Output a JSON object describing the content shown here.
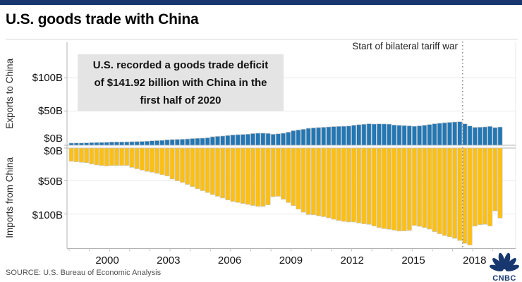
{
  "header": {
    "title": "U.S. goods trade with China"
  },
  "chart": {
    "tariff_label": "Start of bilateral tariff war",
    "annotation_lines": [
      "U.S. recorded a goods trade deficit",
      "of $141.92 billion with China in the",
      "first half of 2020"
    ],
    "y_axis_top": {
      "title": "Exports to China",
      "ticks": [
        "$100B",
        "$50B",
        "$0B"
      ]
    },
    "y_axis_bottom": {
      "title": "Imports from China",
      "ticks": [
        "$0B",
        "$50B",
        "$100B"
      ]
    },
    "x_ticks": [
      "2000",
      "2003",
      "2006",
      "2009",
      "2012",
      "2015",
      "2018"
    ]
  },
  "footer": {
    "source": "SOURCE: U.S. Bureau of Economic Analysis",
    "logo_text": "CNBC"
  },
  "colors": {
    "exports_bar": "#2277b4",
    "imports_bar": "#fdbf12",
    "bar_edge": "#c9c9c9",
    "navy": "#17376e",
    "annotation_bg": "#e4e4e4",
    "grid": "#e8e8e8",
    "axis": "#b3b3b3",
    "dotted_line": "#8c8c8c",
    "tick_text": "#111111"
  },
  "chart_data": {
    "type": "bar",
    "frequency": "quarterly",
    "x_start": "1999Q1",
    "x_end": "2020Q2",
    "units": "USD billions per quarter",
    "title": "U.S. goods trade with China",
    "tariff_war_start": "2018Q3",
    "x_tick_labels": [
      "2000",
      "2003",
      "2006",
      "2009",
      "2012",
      "2015",
      "2018"
    ],
    "y_ticks_top": [
      0,
      50,
      100
    ],
    "y_ticks_bottom": [
      0,
      50,
      100
    ],
    "layout_hint": "two stacked panels sharing x axis; top = exports (up), bottom = imports (inverted down)",
    "series": [
      {
        "name": "Exports to China",
        "axis": "top",
        "color": "#2277b4",
        "values": [
          3.2,
          3.3,
          3.3,
          3.5,
          3.8,
          4.0,
          4.1,
          4.3,
          4.7,
          4.8,
          4.8,
          4.9,
          5.2,
          5.4,
          5.6,
          5.9,
          6.5,
          6.8,
          7.2,
          7.9,
          8.3,
          8.6,
          8.8,
          9.2,
          9.8,
          10.2,
          10.4,
          10.9,
          12.4,
          13.0,
          13.5,
          14.3,
          15.1,
          15.5,
          15.8,
          16.2,
          17.1,
          17.6,
          17.7,
          17.3,
          16.1,
          16.8,
          17.6,
          19.1,
          21.3,
          22.4,
          23.4,
          24.8,
          25.4,
          25.9,
          26.3,
          26.8,
          27.3,
          27.6,
          27.8,
          28.1,
          29.3,
          30.1,
          30.7,
          31.4,
          31.0,
          31.2,
          31.1,
          30.9,
          29.6,
          29.2,
          28.8,
          28.4,
          27.8,
          28.4,
          29.3,
          30.3,
          31.4,
          32.2,
          32.9,
          33.5,
          34.0,
          34.4,
          31.3,
          28.2,
          26.2,
          26.4,
          26.8,
          27.6,
          25.8,
          26.7
        ]
      },
      {
        "name": "Imports from China",
        "axis": "bottom-inverted",
        "color": "#fdbf12",
        "values": [
          19.4,
          20.1,
          20.9,
          21.4,
          23.4,
          24.7,
          25.6,
          26.3,
          25.6,
          25.7,
          25.5,
          25.5,
          28.3,
          30.4,
          32.3,
          34.2,
          35.4,
          37.1,
          39.0,
          40.9,
          45.3,
          47.9,
          50.3,
          53.2,
          56.4,
          59.6,
          62.4,
          65.1,
          68.1,
          70.6,
          73.1,
          76.0,
          78.2,
          79.6,
          81.1,
          82.5,
          84.1,
          85.4,
          85.2,
          83.1,
          71.2,
          70.6,
          74.9,
          79.7,
          84.2,
          89.4,
          93.9,
          97.4,
          97.6,
          99.1,
          100.4,
          102.2,
          104.2,
          106.0,
          107.3,
          108.1,
          108.2,
          109.6,
          110.9,
          111.7,
          114.1,
          116.4,
          117.9,
          118.8,
          120.1,
          121.4,
          121.2,
          120.5,
          113.2,
          114.6,
          116.4,
          118.6,
          122.3,
          125.4,
          128.1,
          129.8,
          132.1,
          135.2,
          139.4,
          141.9,
          114.2,
          112.1,
          111.6,
          114.1,
          92.0,
          102.4
        ]
      }
    ]
  }
}
